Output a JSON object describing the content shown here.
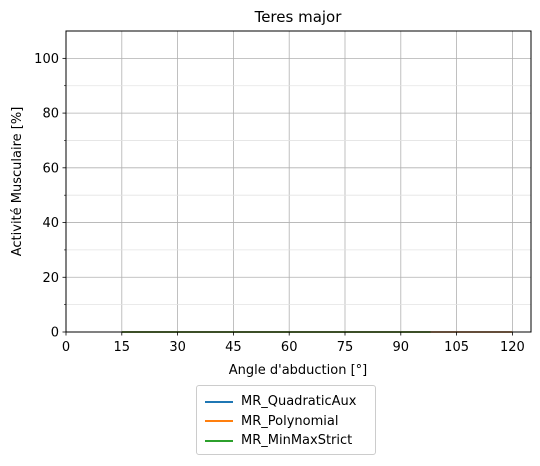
{
  "chart_data": {
    "type": "line",
    "title": "Teres major",
    "xlabel": "Angle d'abduction [°]",
    "ylabel": "Activité Musculaire [%]",
    "xlim": [
      0,
      125
    ],
    "ylim": [
      0,
      110
    ],
    "xticks": [
      0,
      15,
      30,
      45,
      60,
      75,
      90,
      105,
      120
    ],
    "yticks": [
      0,
      20,
      40,
      60,
      80,
      100
    ],
    "y_minor_ticks": [
      10,
      30,
      50,
      70,
      90
    ],
    "grid": true,
    "legend_placement": "below",
    "series": [
      {
        "name": "MR_QuadraticAux",
        "color": "#1f77b4",
        "x": [
          15,
          120
        ],
        "y": [
          0,
          0
        ]
      },
      {
        "name": "MR_Polynomial",
        "color": "#ff7f0e",
        "x": [
          15,
          120
        ],
        "y": [
          0,
          0
        ]
      },
      {
        "name": "MR_MinMaxStrict",
        "color": "#2ca02c",
        "x": [
          15,
          98
        ],
        "y": [
          0,
          0
        ]
      }
    ]
  }
}
